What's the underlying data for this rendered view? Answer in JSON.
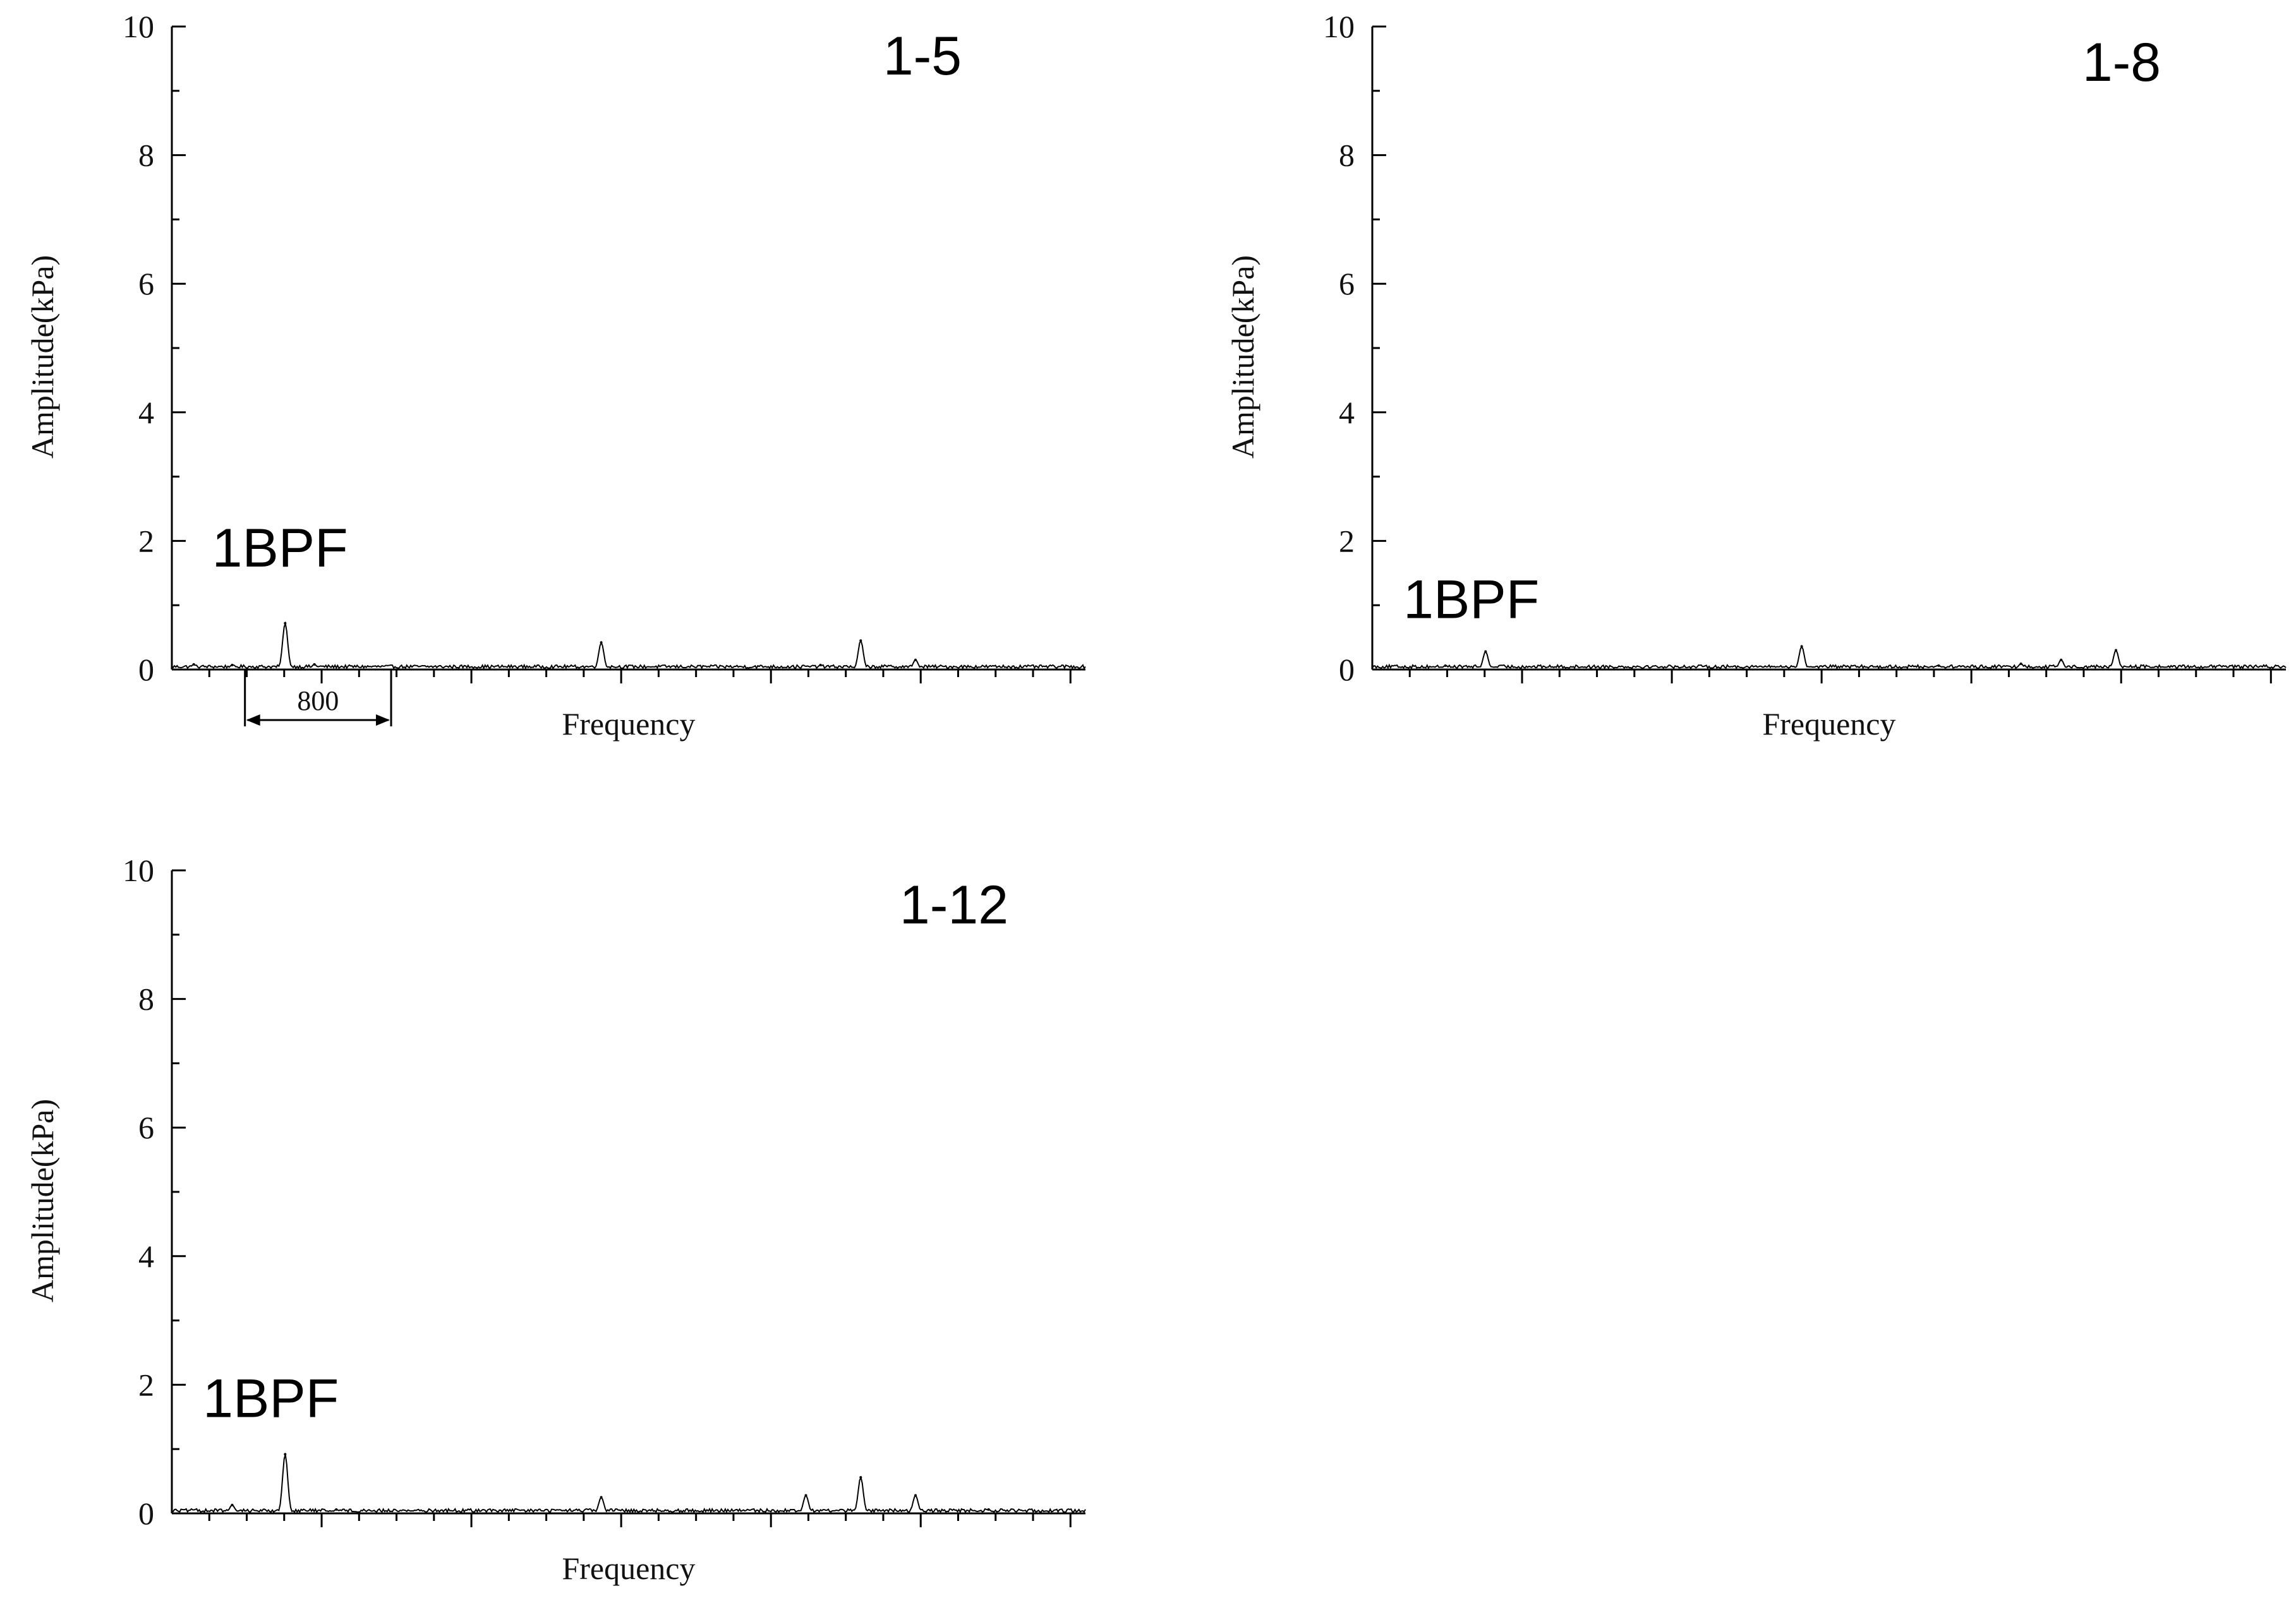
{
  "chart_data": [
    {
      "type": "line",
      "title": "1-5",
      "xlabel": "Frequency",
      "ylabel": "Amplitude(kPa)",
      "ylim": [
        0,
        10
      ],
      "yticks": [
        "0",
        "2",
        "4",
        "6",
        "8",
        "10"
      ],
      "xlim": [
        0,
        5000
      ],
      "x_minor_ticks": 24,
      "grid": false,
      "annotations": [
        {
          "text": "1BPF",
          "x": 220,
          "y": 1.6
        },
        {
          "type": "dimension",
          "text": "800",
          "x_start": 400,
          "x_end": 1200
        }
      ],
      "series": [
        {
          "peaks": [
            {
              "x": 120,
              "y": 0.08
            },
            {
              "x": 330,
              "y": 0.07
            },
            {
              "x": 620,
              "y": 0.72
            },
            {
              "x": 780,
              "y": 0.08
            },
            {
              "x": 2350,
              "y": 0.42
            },
            {
              "x": 3550,
              "y": 0.07
            },
            {
              "x": 3770,
              "y": 0.45
            },
            {
              "x": 4070,
              "y": 0.15
            }
          ]
        }
      ]
    },
    {
      "type": "line",
      "title": "1-8",
      "xlabel": "Frequency",
      "ylabel": "Amplitude(kPa)",
      "ylim": [
        0,
        10
      ],
      "yticks": [
        "0",
        "2",
        "4",
        "6",
        "8",
        "10"
      ],
      "xlim": [
        0,
        5000
      ],
      "x_minor_ticks": 24,
      "grid": false,
      "annotations": [
        {
          "text": "1BPF",
          "x": 170,
          "y": 0.8
        }
      ],
      "series": [
        {
          "peaks": [
            {
              "x": 400,
              "y": 0.06
            },
            {
              "x": 620,
              "y": 0.28
            },
            {
              "x": 2350,
              "y": 0.36
            },
            {
              "x": 3100,
              "y": 0.06
            },
            {
              "x": 3550,
              "y": 0.09
            },
            {
              "x": 3770,
              "y": 0.15
            },
            {
              "x": 4070,
              "y": 0.3
            }
          ]
        }
      ]
    },
    {
      "type": "line",
      "title": "1-12",
      "xlabel": "Frequency",
      "ylabel": "Amplitude(kPa)",
      "ylim": [
        0,
        10
      ],
      "yticks": [
        "0",
        "2",
        "4",
        "6",
        "8",
        "10"
      ],
      "xlim": [
        0,
        5000
      ],
      "x_minor_ticks": 24,
      "grid": false,
      "annotations": [
        {
          "text": "1BPF",
          "x": 170,
          "y": 1.5
        }
      ],
      "series": [
        {
          "peaks": [
            {
              "x": 330,
              "y": 0.13
            },
            {
              "x": 620,
              "y": 0.92
            },
            {
              "x": 900,
              "y": 0.06
            },
            {
              "x": 2350,
              "y": 0.25
            },
            {
              "x": 3470,
              "y": 0.28
            },
            {
              "x": 3770,
              "y": 0.56
            },
            {
              "x": 4070,
              "y": 0.28
            },
            {
              "x": 4470,
              "y": 0.06
            }
          ]
        }
      ]
    }
  ]
}
